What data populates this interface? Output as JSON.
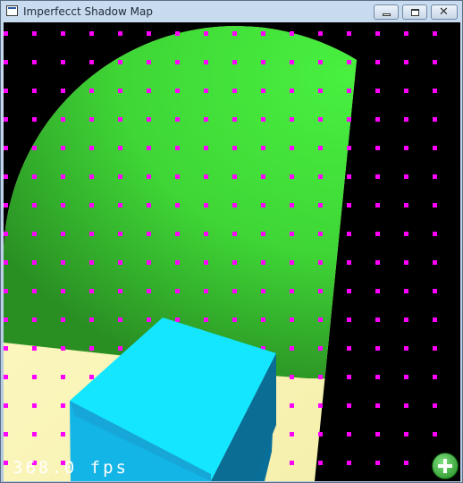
{
  "window": {
    "title": "Imperfecct Shadow Map",
    "controls": {
      "minimize_icon": "minimize-icon",
      "maximize_icon": "maximize-icon",
      "close_glyph": "✕"
    }
  },
  "scene": {
    "background_color": "#000000",
    "point_color": "#ff00ff",
    "floor_color": "#3fe03a",
    "floor_shade_color": "#2c9a25",
    "light_color": "#fffbc0",
    "cube_top_color": "#14e6ff",
    "cube_front_color": "#13b4e6",
    "cube_right_color": "#0a6f98"
  },
  "status": {
    "fps": "368.0 fps"
  },
  "overlay": {
    "add_icon": "add-icon"
  }
}
